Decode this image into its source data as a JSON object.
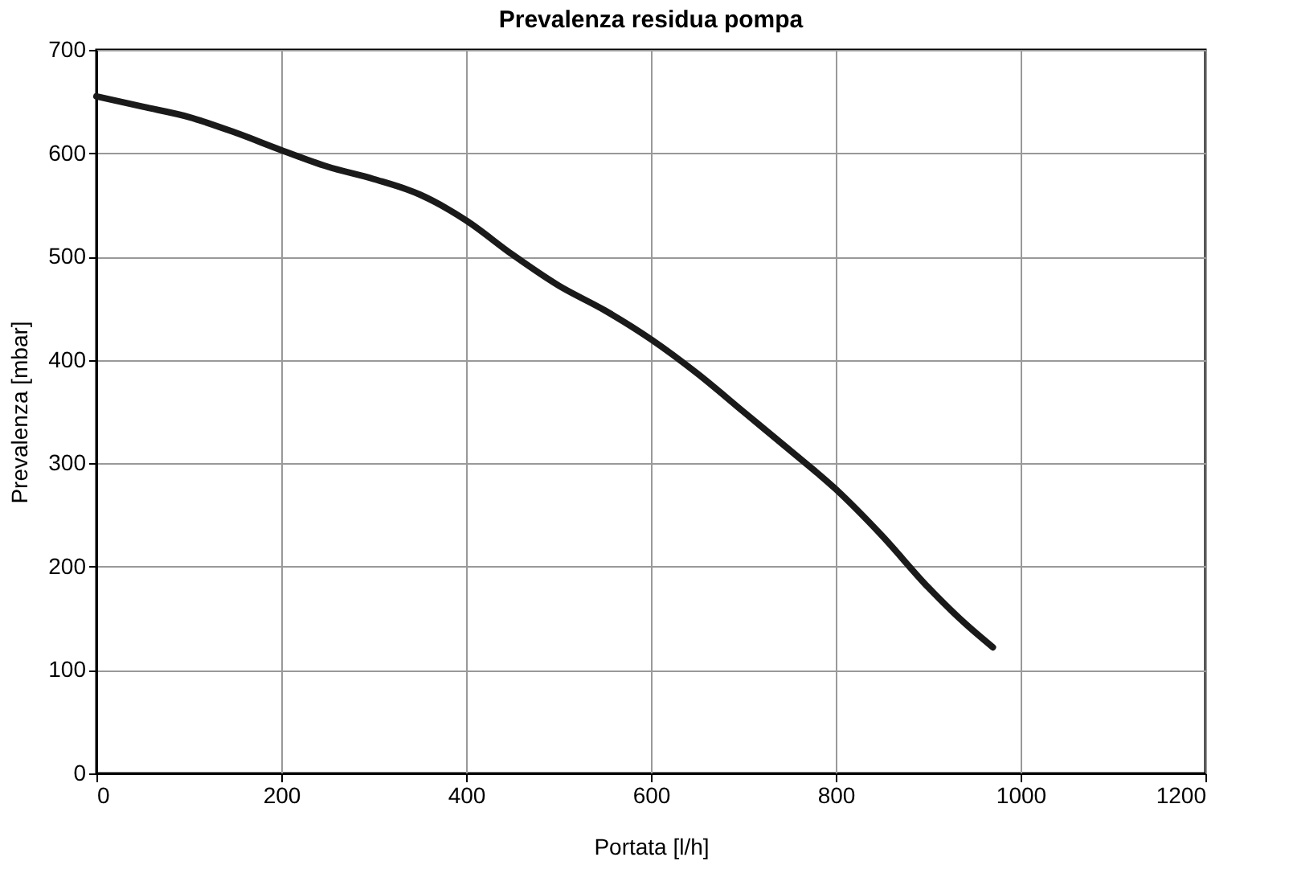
{
  "chart_data": {
    "type": "line",
    "title": "Prevalenza residua pompa",
    "xlabel": "Portata [l/h]",
    "ylabel": "Prevalenza [mbar]",
    "x": [
      0,
      50,
      100,
      150,
      200,
      250,
      300,
      350,
      400,
      450,
      500,
      550,
      600,
      650,
      700,
      750,
      800,
      850,
      900,
      940,
      970
    ],
    "series": [
      {
        "color": "#1a1a1a",
        "values": [
          655,
          645,
          635,
          620,
          603,
          587,
          575,
          560,
          535,
          502,
          472,
          448,
          420,
          387,
          350,
          313,
          275,
          230,
          180,
          145,
          122
        ]
      }
    ],
    "xlim": [
      0,
      1200
    ],
    "xticks": [
      0,
      200,
      400,
      600,
      800,
      1000,
      1200
    ],
    "ylim": [
      0,
      700
    ],
    "yticks": [
      0,
      100,
      200,
      300,
      400,
      500,
      600,
      700
    ],
    "grid": true,
    "marker": "none",
    "line_style": "solid"
  }
}
